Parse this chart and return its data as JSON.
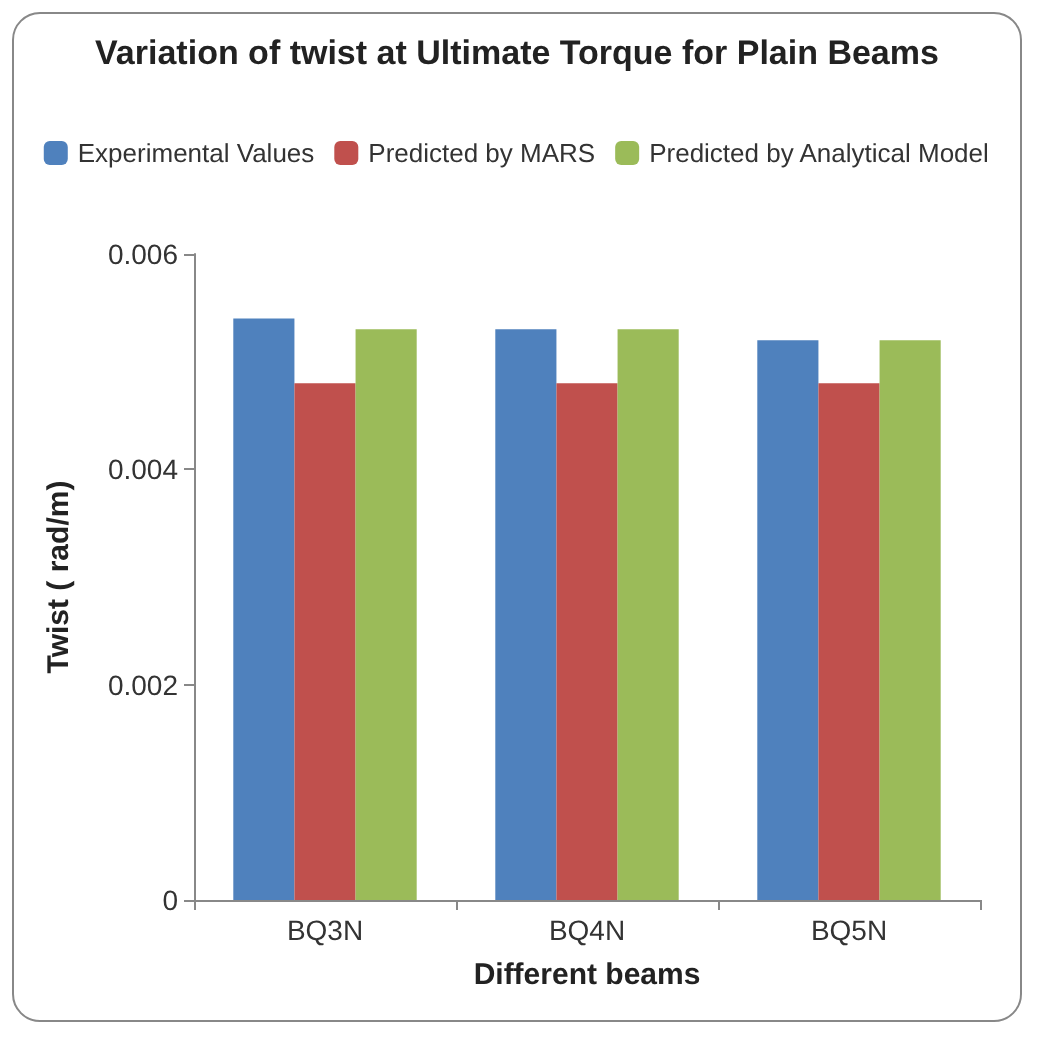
{
  "chart_data": {
    "type": "bar",
    "title": "Variation of twist at Ultimate Torque for Plain Beams",
    "xlabel": "Different beams",
    "ylabel": "Twist ( rad/m)",
    "categories": [
      "BQ3N",
      "BQ4N",
      "BQ5N"
    ],
    "series": [
      {
        "name": "Experimental Values",
        "color": "#4f81bd",
        "values": [
          0.0054,
          0.0053,
          0.0052
        ]
      },
      {
        "name": "Predicted by MARS",
        "color": "#c0504d",
        "values": [
          0.0048,
          0.0048,
          0.0048
        ]
      },
      {
        "name": "Predicted by Analytical Model",
        "color": "#9bbb59",
        "values": [
          0.0053,
          0.0053,
          0.0052
        ]
      }
    ],
    "ylim": [
      0,
      0.006
    ],
    "yticks": [
      0,
      0.002,
      0.004,
      0.006
    ],
    "grid": false,
    "legend": "top"
  }
}
